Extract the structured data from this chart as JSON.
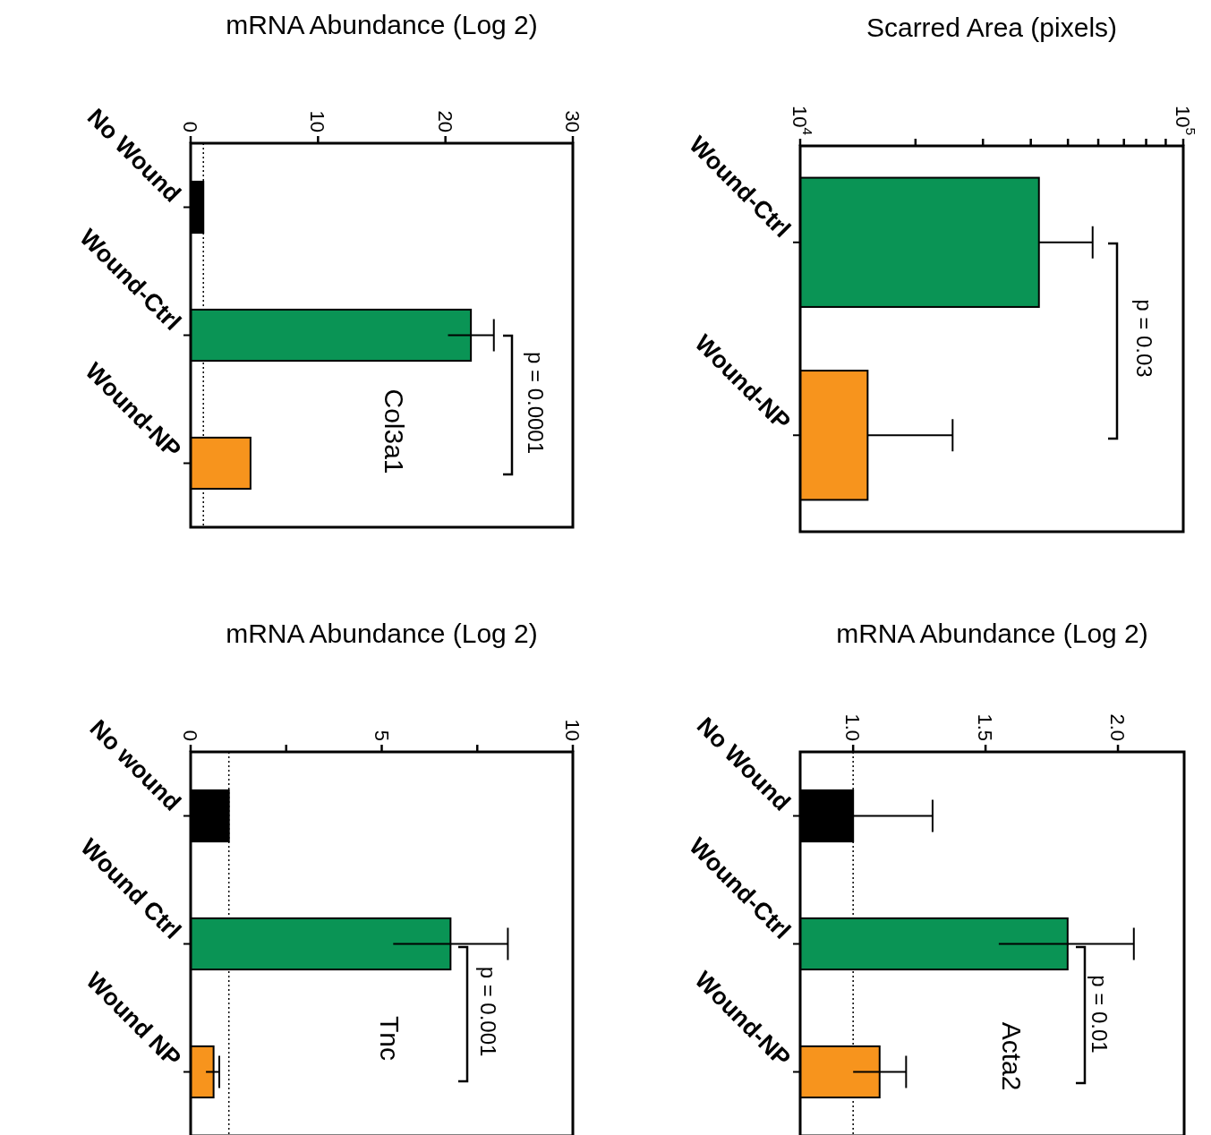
{
  "chart_data": [
    {
      "type": "bar",
      "orientation": "horizontal",
      "xlabel": "mRNA Abundance (Log 2)",
      "categories": [
        "No Wound",
        "Wound-Ctrl",
        "Wound-NP"
      ],
      "values": [
        1.0,
        22.0,
        4.7
      ],
      "colors": [
        "#000000",
        "#0a9455",
        "#f7941d"
      ],
      "errors": [
        null,
        1.8,
        null
      ],
      "xlim": [
        0,
        30
      ],
      "xticks": [
        0,
        10,
        20,
        30
      ],
      "ref_lines": [
        {
          "axis": "x",
          "value": 1,
          "line_style": "dotted"
        }
      ],
      "annotations": [
        "p = 0.0001",
        "Col3a1"
      ]
    },
    {
      "type": "bar",
      "orientation": "horizontal",
      "xlabel": "Scarred Area (pixels)",
      "categories": [
        "Wound-Ctrl",
        "Wound-NP"
      ],
      "values": [
        42000,
        15000
      ],
      "colors": [
        "#0a9455",
        "#f7941d"
      ],
      "errors": [
        [
          42000,
          58000
        ],
        [
          15000,
          25000
        ]
      ],
      "log": "x",
      "xlim": [
        10000,
        100000
      ],
      "xticks": [
        {
          "value": 10000,
          "label": "10$^{4}$"
        },
        {
          "value": 20000,
          "label": null
        },
        {
          "value": 30000,
          "label": null
        },
        {
          "value": 40000,
          "label": null
        },
        {
          "value": 50000,
          "label": null
        },
        {
          "value": 60000,
          "label": null
        },
        {
          "value": 70000,
          "label": null
        },
        {
          "value": 80000,
          "label": null
        },
        {
          "value": 90000,
          "label": null
        },
        {
          "value": 100000,
          "label": "10$^{5}$"
        }
      ],
      "annotations": [
        "p = 0.03"
      ]
    },
    {
      "type": "bar",
      "orientation": "horizontal",
      "xlabel": "mRNA Abundance (Log 2)",
      "categories": [
        "No wound",
        "Wound Ctrl",
        "Wound NP"
      ],
      "values": [
        1.0,
        6.8,
        0.6
      ],
      "colors": [
        "#000000",
        "#0a9455",
        "#f7941d"
      ],
      "errors": [
        null,
        [
          5.3,
          8.3
        ],
        [
          0.4,
          0.75
        ]
      ],
      "xlim": [
        0,
        10
      ],
      "xticks": [
        0,
        {
          "value": 2.5,
          "label": null
        },
        5,
        {
          "value": 7.5,
          "label": null
        },
        10
      ],
      "ref_lines": [
        {
          "axis": "x",
          "value": 1,
          "line_style": "dotted"
        }
      ],
      "annotations": [
        "p = 0.001",
        "Tnc"
      ]
    },
    {
      "type": "bar",
      "orientation": "horizontal",
      "xlabel": "mRNA Abundance (Log 2)",
      "categories": [
        "No Wound",
        "Wound-Ctrl",
        "Wound-NP"
      ],
      "values": [
        1.0,
        1.81,
        1.1
      ],
      "colors": [
        "#000000",
        "#0a9455",
        "#f7941d"
      ],
      "errors": [
        [
          1.0,
          1.3
        ],
        [
          1.55,
          2.06
        ],
        [
          1.0,
          1.2
        ]
      ],
      "xlim": [
        0.8,
        2.25
      ],
      "xticks": [
        {
          "value": 1,
          "label": "1.0"
        },
        {
          "value": 1.5,
          "label": "1.5"
        },
        {
          "value": 2,
          "label": "2.0"
        }
      ],
      "ref_lines": [
        {
          "axis": "x",
          "value": 1,
          "line_style": "dotted"
        }
      ],
      "annotations": [
        "p = 0.01",
        "Acta2"
      ]
    }
  ]
}
